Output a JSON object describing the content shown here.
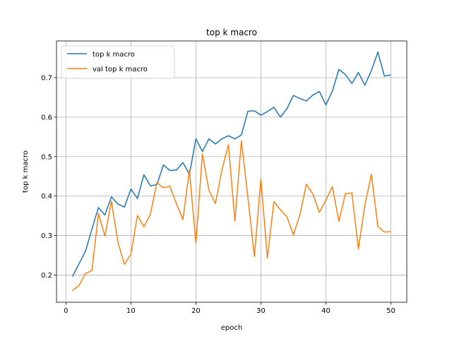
{
  "chart_data": {
    "type": "line",
    "title": "top k macro",
    "xlabel": "epoch",
    "ylabel": "top k macro",
    "xlim": [
      -1.45,
      52.45
    ],
    "ylim": [
      0.131,
      0.793
    ],
    "xticks": [
      0,
      10,
      20,
      30,
      40,
      50
    ],
    "yticks": [
      0.2,
      0.3,
      0.4,
      0.5,
      0.6,
      0.7
    ],
    "grid": true,
    "legend_position": "top-left",
    "x": [
      1,
      2,
      3,
      4,
      5,
      6,
      7,
      8,
      9,
      10,
      11,
      12,
      13,
      14,
      15,
      16,
      17,
      18,
      19,
      20,
      21,
      22,
      23,
      24,
      25,
      26,
      27,
      28,
      29,
      30,
      31,
      32,
      33,
      34,
      35,
      36,
      37,
      38,
      39,
      40,
      41,
      42,
      43,
      44,
      45,
      46,
      47,
      48,
      49,
      50
    ],
    "series": [
      {
        "name": "top k macro",
        "color": "#1f77b4",
        "values": [
          0.196,
          0.228,
          0.26,
          0.316,
          0.371,
          0.352,
          0.398,
          0.38,
          0.372,
          0.418,
          0.394,
          0.454,
          0.426,
          0.429,
          0.479,
          0.465,
          0.466,
          0.485,
          0.455,
          0.545,
          0.513,
          0.545,
          0.532,
          0.545,
          0.553,
          0.545,
          0.555,
          0.615,
          0.616,
          0.605,
          0.614,
          0.625,
          0.6,
          0.621,
          0.655,
          0.647,
          0.641,
          0.656,
          0.665,
          0.631,
          0.666,
          0.721,
          0.708,
          0.685,
          0.713,
          0.681,
          0.718,
          0.765,
          0.704,
          0.707
        ]
      },
      {
        "name": "val top k macro",
        "color": "#ff7f0e",
        "values": [
          0.161,
          0.173,
          0.204,
          0.211,
          0.356,
          0.299,
          0.387,
          0.283,
          0.227,
          0.253,
          0.351,
          0.322,
          0.354,
          0.434,
          0.421,
          0.425,
          0.381,
          0.34,
          0.466,
          0.28,
          0.507,
          0.415,
          0.381,
          0.466,
          0.53,
          0.337,
          0.54,
          0.397,
          0.247,
          0.443,
          0.243,
          0.386,
          0.365,
          0.348,
          0.302,
          0.352,
          0.43,
          0.405,
          0.359,
          0.39,
          0.424,
          0.336,
          0.406,
          0.408,
          0.266,
          0.377,
          0.455,
          0.323,
          0.309,
          0.31
        ]
      }
    ]
  }
}
